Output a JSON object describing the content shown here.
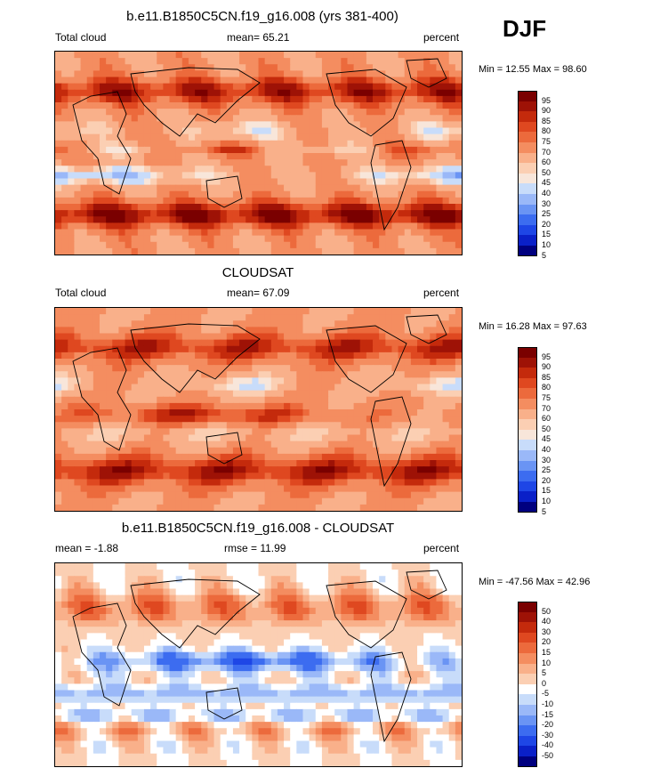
{
  "season": "DJF",
  "colors": {
    "abs": [
      "#00007f",
      "#0a20c8",
      "#1e46e6",
      "#3c6cf0",
      "#6a94f4",
      "#9ab8f8",
      "#c8dcfa",
      "#f8e6da",
      "#fbcfb3",
      "#f9b08a",
      "#f48d60",
      "#ec6a3c",
      "#df4820",
      "#c42a0c",
      "#9e1206",
      "#7a0000"
    ],
    "diff": [
      "#00007f",
      "#0a20c8",
      "#1e46e6",
      "#3c6cf0",
      "#6a94f4",
      "#9ab8f8",
      "#c8dcfa",
      "#ffffff",
      "#fbcfb3",
      "#f9b08a",
      "#f48d60",
      "#ec6a3c",
      "#df4820",
      "#c42a0c",
      "#9e1206",
      "#7a0000"
    ]
  },
  "panels": [
    {
      "title": "b.e11.B1850C5CN.f19_g16.008 (yrs 381-400)",
      "left": "Total cloud",
      "center": "mean=  65.21",
      "right": "percent",
      "minmax": "Min =  12.55 Max =  98.60",
      "levels": [
        "95",
        "90",
        "85",
        "80",
        "75",
        "70",
        "60",
        "50",
        "45",
        "40",
        "30",
        "25",
        "20",
        "15",
        "10",
        "5"
      ],
      "colorset": "abs"
    },
    {
      "title": "CLOUDSAT",
      "left": "Total cloud",
      "center": "mean=  67.09",
      "right": "percent",
      "minmax": "Min =  16.28 Max =  97.63",
      "levels": [
        "95",
        "90",
        "85",
        "80",
        "75",
        "70",
        "60",
        "50",
        "45",
        "40",
        "30",
        "25",
        "20",
        "15",
        "10",
        "5"
      ],
      "colorset": "abs"
    },
    {
      "title": "b.e11.B1850C5CN.f19_g16.008 - CLOUDSAT",
      "left": "mean =  -1.88",
      "center": "rmse =  11.99",
      "right": "percent",
      "minmax": "Min = -47.56 Max =  42.96",
      "levels": [
        "50",
        "40",
        "30",
        "20",
        "15",
        "10",
        "5",
        "0",
        "-5",
        "-10",
        "-15",
        "-20",
        "-30",
        "-40",
        "-50"
      ],
      "colorset": "diff"
    }
  ],
  "chart_data": [
    {
      "type": "heatmap",
      "title": "b.e11.B1850C5CN.f19_g16.008 (yrs 381-400)",
      "subtitle_left": "Total cloud",
      "subtitle_center": "mean=  65.21",
      "units": "percent",
      "min": 12.55,
      "max": 98.6,
      "mean": 65.21,
      "contour_levels": [
        5,
        10,
        15,
        20,
        25,
        30,
        40,
        45,
        50,
        60,
        70,
        75,
        80,
        85,
        90,
        95
      ]
    },
    {
      "type": "heatmap",
      "title": "CLOUDSAT",
      "subtitle_left": "Total cloud",
      "subtitle_center": "mean=  67.09",
      "units": "percent",
      "min": 16.28,
      "max": 97.63,
      "mean": 67.09,
      "contour_levels": [
        5,
        10,
        15,
        20,
        25,
        30,
        40,
        45,
        50,
        60,
        70,
        75,
        80,
        85,
        90,
        95
      ]
    },
    {
      "type": "heatmap",
      "title": "b.e11.B1850C5CN.f19_g16.008 - CLOUDSAT",
      "subtitle_left": "mean =  -1.88",
      "subtitle_center": "rmse =  11.99",
      "units": "percent",
      "min": -47.56,
      "max": 42.96,
      "mean": -1.88,
      "rmse": 11.99,
      "contour_levels": [
        -50,
        -40,
        -30,
        -20,
        -15,
        -10,
        -5,
        0,
        5,
        10,
        15,
        20,
        30,
        40,
        50
      ]
    }
  ]
}
